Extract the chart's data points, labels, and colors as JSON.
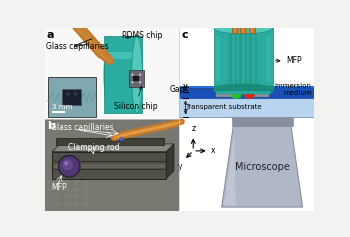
{
  "bg_color": "#f2f2f0",
  "panel_a_label": "a",
  "panel_b_label": "b",
  "panel_c_label": "c",
  "teal_main": "#2aada0",
  "teal_light": "#50c8bc",
  "teal_dark": "#1a8a7a",
  "teal_mid": "#35b8ab",
  "copper_main": "#c8782a",
  "copper_light": "#e8a850",
  "copper_dark": "#8a5010",
  "silicon_color": "#6a6870",
  "blue_deep": "#1850b8",
  "blue_medium": "#2870d8",
  "blue_light": "#90b8e0",
  "blue_pale": "#b8d4ee",
  "gray_pad": "#909098",
  "green_spot": "#28c028",
  "red_spot": "#d82818",
  "mic_body": "#b0b8c8",
  "mic_dark": "#8890a0",
  "mic_light": "#d0d8e8",
  "white": "#ffffff",
  "black": "#000000",
  "inset_bg": "#80a8b0",
  "photo_bg": "#787870",
  "photo_metal": "#505048",
  "photo_metal_light": "#888880",
  "label_fs": 8,
  "ann_fs": 5.5
}
